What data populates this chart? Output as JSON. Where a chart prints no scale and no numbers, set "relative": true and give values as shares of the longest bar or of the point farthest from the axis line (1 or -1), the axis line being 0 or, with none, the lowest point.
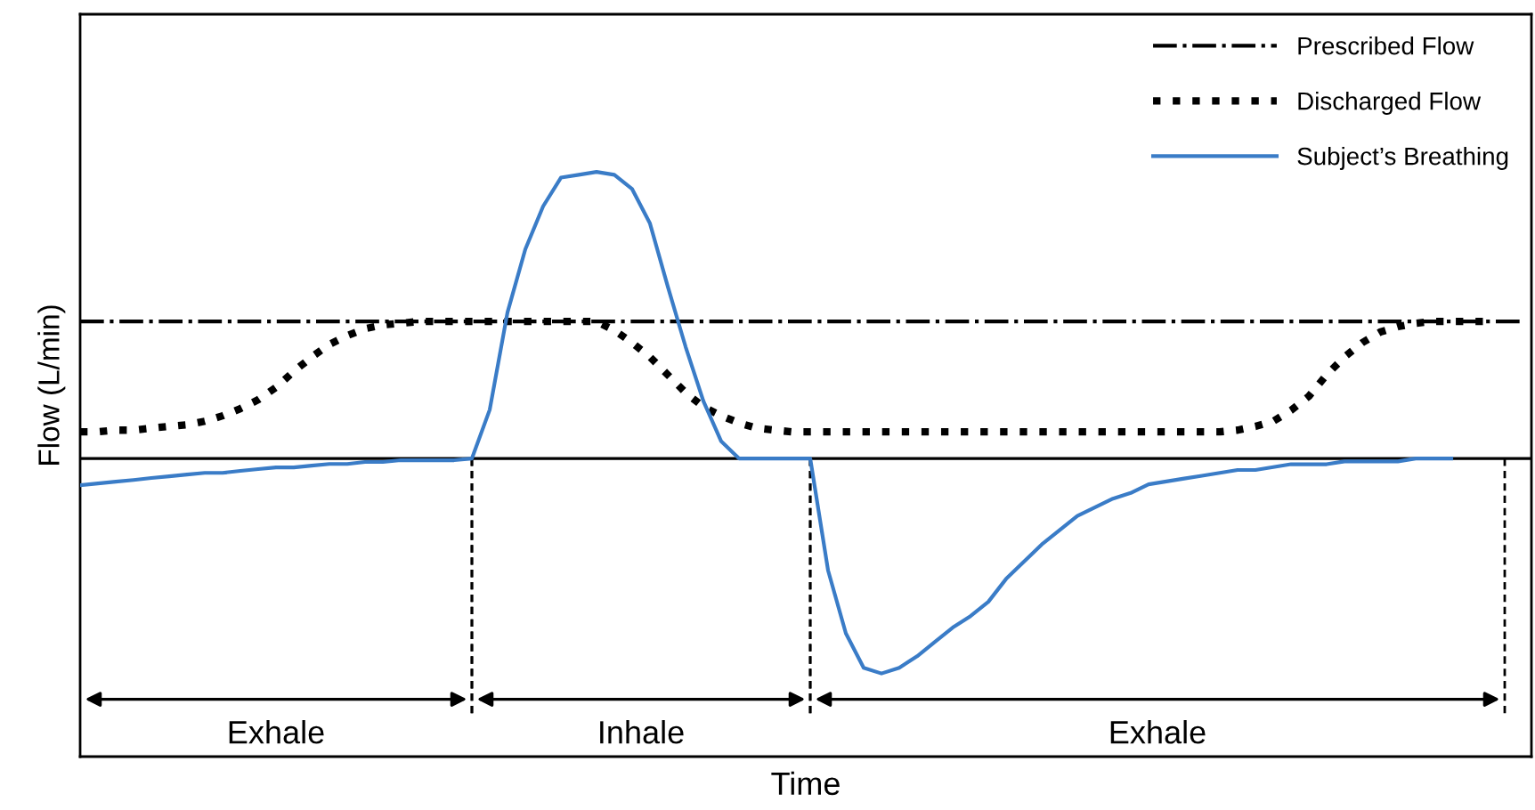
{
  "chart_data": {
    "type": "line",
    "relative": true,
    "xlabel": "Time",
    "ylabel": "Flow (L/min)",
    "legend": "top right",
    "marker": "none",
    "categories": [
      null,
      null,
      null,
      null,
      null,
      null,
      null,
      null,
      null,
      null,
      null,
      null,
      null,
      null,
      null,
      null,
      null,
      null,
      null,
      null,
      null,
      null,
      null,
      null,
      null,
      null,
      null,
      null,
      null,
      null,
      null,
      null,
      null,
      null,
      null,
      null,
      null,
      null,
      null,
      null,
      null,
      null,
      null,
      null,
      null,
      null,
      null,
      null,
      null,
      null,
      null,
      null,
      null,
      null,
      null,
      null,
      null,
      null,
      null,
      null,
      null,
      null,
      null,
      null,
      null,
      null,
      null,
      null,
      null,
      null,
      null,
      null,
      null,
      null,
      null,
      null,
      null,
      null,
      null,
      null,
      null,
      null
    ],
    "series": [
      {
        "name": "Prescribed Flow",
        "color": "#000000",
        "line_style": "dashdot",
        "values": [
          0.478,
          0.478,
          0.478,
          0.478,
          0.478,
          0.478,
          0.478,
          0.478,
          0.478,
          0.478,
          0.478,
          0.478,
          0.478,
          0.478,
          0.478,
          0.478,
          0.478,
          0.478,
          0.478,
          0.478,
          0.478,
          0.478,
          0.478,
          0.478,
          0.478,
          0.478,
          0.478,
          0.478,
          0.478,
          0.478,
          0.478,
          0.478,
          0.478,
          0.478,
          0.478,
          0.478,
          0.478,
          0.478,
          0.478,
          0.478,
          0.478,
          0.478,
          0.478,
          0.478,
          0.478,
          0.478,
          0.478,
          0.478,
          0.478,
          0.478,
          0.478,
          0.478,
          0.478,
          0.478,
          0.478,
          0.478,
          0.478,
          0.478,
          0.478,
          0.478,
          0.478,
          0.478,
          0.478,
          0.478,
          0.478,
          0.478,
          0.478,
          0.478,
          0.478,
          0.478,
          0.478,
          0.478,
          0.478,
          0.478,
          0.478,
          0.478,
          0.478,
          0.478,
          0.478,
          0.478,
          0.478,
          0.478
        ]
      },
      {
        "name": "Discharged Flow",
        "color": "#000000",
        "line_style": "dotted",
        "values": [
          0.093,
          0.093,
          0.099,
          0.099,
          0.106,
          0.112,
          0.118,
          0.13,
          0.149,
          0.174,
          0.205,
          0.248,
          0.304,
          0.354,
          0.398,
          0.429,
          0.453,
          0.466,
          0.472,
          0.478,
          0.478,
          0.478,
          0.478,
          0.478,
          0.478,
          0.478,
          0.478,
          0.478,
          0.478,
          0.478,
          0.447,
          0.404,
          0.354,
          0.292,
          0.23,
          0.18,
          0.149,
          0.124,
          0.106,
          0.099,
          0.093,
          0.093,
          0.093,
          0.093,
          0.093,
          0.093,
          0.093,
          0.093,
          0.093,
          0.093,
          0.093,
          0.093,
          0.093,
          0.093,
          0.093,
          0.093,
          0.093,
          0.093,
          0.093,
          0.093,
          0.093,
          0.093,
          0.093,
          0.093,
          0.093,
          0.099,
          0.112,
          0.13,
          0.168,
          0.217,
          0.292,
          0.354,
          0.404,
          0.441,
          0.46,
          0.472,
          0.478,
          0.478,
          0.478,
          0.478,
          null,
          null
        ]
      },
      {
        "name": "Subject’s Breathing",
        "color": "#3a7cc7",
        "line_style": "solid",
        "values": [
          -0.093,
          -0.087,
          -0.081,
          -0.075,
          -0.068,
          -0.062,
          -0.056,
          -0.05,
          -0.05,
          -0.043,
          -0.037,
          -0.031,
          -0.031,
          -0.025,
          -0.019,
          -0.019,
          -0.012,
          -0.012,
          -0.006,
          -0.006,
          -0.006,
          -0.006,
          0,
          0.17,
          0.51,
          0.73,
          0.88,
          0.98,
          0.99,
          1,
          0.99,
          0.94,
          0.82,
          0.6,
          0.39,
          0.2,
          0.06,
          0,
          0,
          0,
          0,
          0,
          -0.39,
          -0.61,
          -0.73,
          -0.75,
          -0.73,
          -0.69,
          -0.64,
          -0.59,
          -0.55,
          -0.5,
          -0.42,
          -0.36,
          -0.3,
          -0.25,
          -0.2,
          -0.17,
          -0.14,
          -0.12,
          -0.09,
          -0.08,
          -0.07,
          -0.06,
          -0.05,
          -0.04,
          -0.04,
          -0.03,
          -0.02,
          -0.02,
          -0.02,
          -0.01,
          -0.01,
          -0.01,
          -0.01,
          0,
          0,
          0,
          null,
          null,
          null,
          null
        ]
      }
    ],
    "annotations": [
      "Exhale",
      "Inhale",
      "Exhale"
    ]
  }
}
